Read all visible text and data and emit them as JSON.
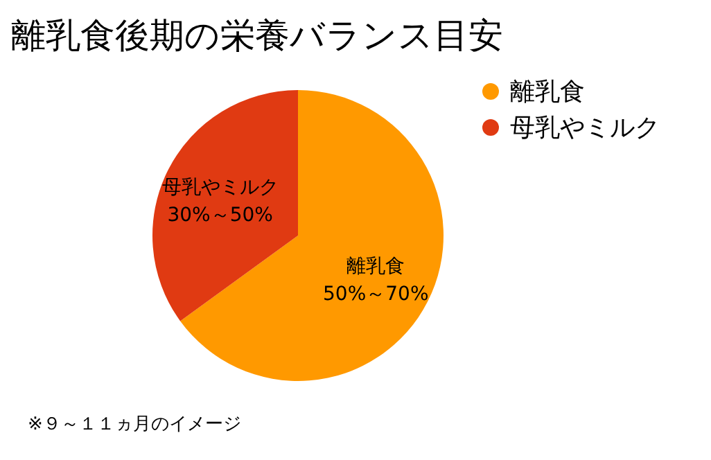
{
  "chart_data": {
    "type": "pie",
    "title": "離乳食後期の栄養バランス目安",
    "categories": [
      "離乳食",
      "母乳やミルク"
    ],
    "values": [
      65,
      35
    ],
    "colors": [
      "#ff9900",
      "#e03a12"
    ],
    "legend": "top right",
    "annotations": [
      "50%～70%",
      "30%～50%",
      "※９～１１ヵ月のイメージ"
    ]
  }
}
